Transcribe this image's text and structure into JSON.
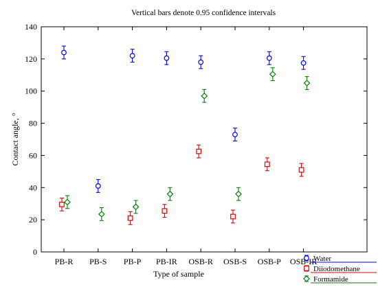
{
  "chart_data": {
    "type": "scatter",
    "title": "Vertical bars denote 0.95 confidence intervals",
    "xlabel": "Type of sample",
    "ylabel": "Contact angle, °",
    "categories": [
      "PB-R",
      "PB-S",
      "PB-P",
      "PB-IR",
      "OSB-R",
      "OSB-S",
      "OSB-P",
      "OSB-IR"
    ],
    "ylim": [
      0,
      140
    ],
    "yticks": [
      0,
      20,
      40,
      60,
      80,
      100,
      120,
      140
    ],
    "grid": false,
    "legend_position": "bottom-right outside",
    "series": [
      {
        "name": "Water",
        "color": "#0000e0",
        "marker": "circle",
        "values": [
          124,
          41,
          122,
          120.5,
          118,
          73,
          120.5,
          117.5
        ],
        "ci_low": [
          120,
          37,
          118,
          116.5,
          114,
          69,
          116.5,
          113.5
        ],
        "ci_high": [
          128,
          45,
          126,
          124.5,
          122,
          77,
          124.5,
          121.5
        ]
      },
      {
        "name": "Diiodomethane",
        "color": "#e00000",
        "marker": "square",
        "values": [
          29.5,
          null,
          21,
          25.5,
          62.5,
          22,
          54.5,
          51
        ],
        "ci_low": [
          25.5,
          null,
          17,
          21.5,
          58.5,
          18,
          50.5,
          47
        ],
        "ci_high": [
          33.5,
          null,
          25,
          29.5,
          66.5,
          26,
          58.5,
          55
        ]
      },
      {
        "name": "Formamide",
        "color": "#008000",
        "marker": "diamond",
        "values": [
          31,
          23.5,
          28,
          36,
          97,
          36,
          110.5,
          105
        ],
        "ci_low": [
          27,
          19.5,
          24,
          32,
          93,
          32,
          106.5,
          101
        ],
        "ci_high": [
          35,
          27.5,
          32,
          40,
          101,
          40,
          114.5,
          109
        ]
      }
    ]
  }
}
